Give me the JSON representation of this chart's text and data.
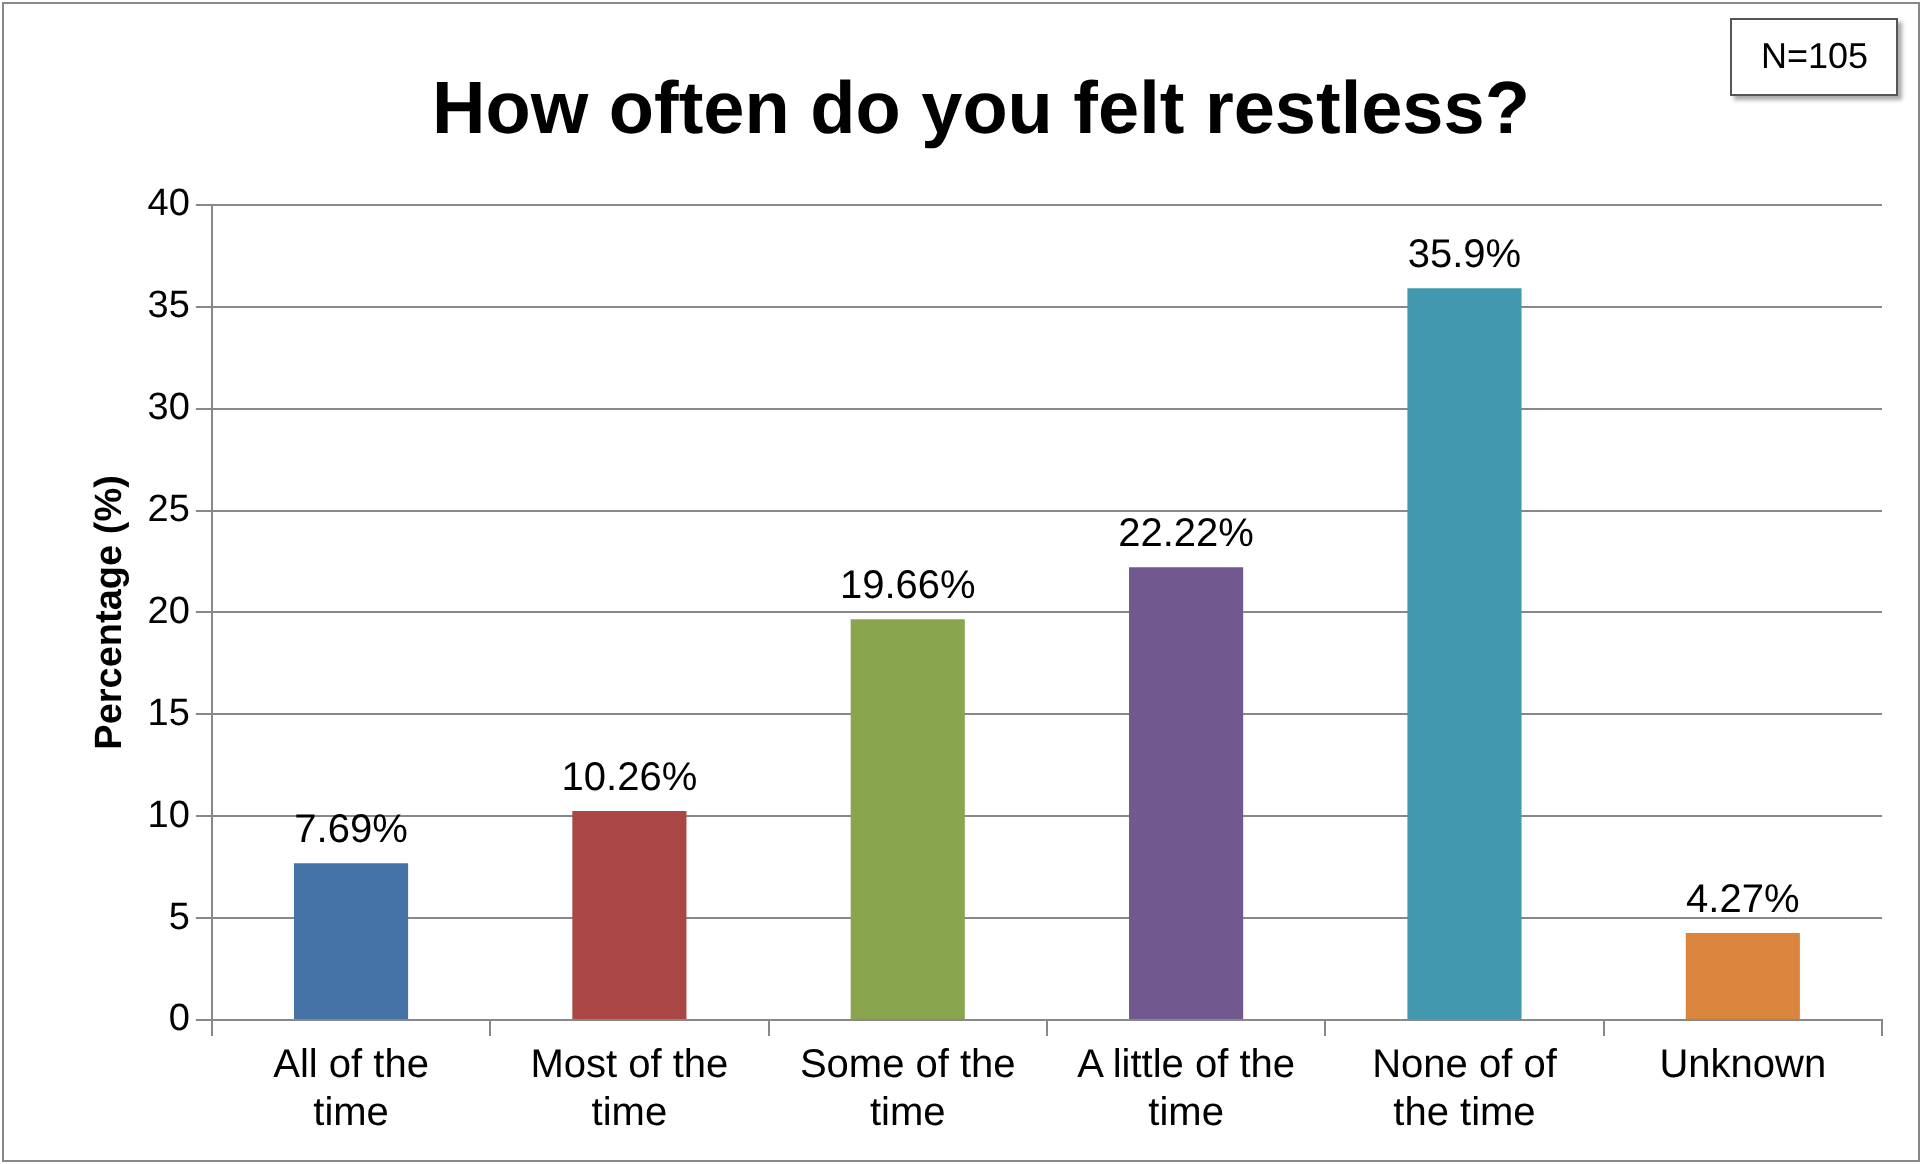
{
  "chart_data": {
    "type": "bar",
    "title": "How often do you felt restless?",
    "ylabel": "Percentage (%)",
    "categories": [
      "All of the time",
      "Most of the time",
      "Some of the time",
      "A little of the time",
      "None of of the time",
      "Unknown"
    ],
    "values": [
      7.69,
      10.26,
      19.66,
      22.22,
      35.9,
      4.27
    ],
    "colors": [
      "#4572a7",
      "#aa4643",
      "#89a54e",
      "#71588f",
      "#4198af",
      "#db843d"
    ],
    "value_labels": [
      "7.69%",
      "10.26%",
      "19.66%",
      "22.22%",
      "35.9%",
      "4.27%"
    ],
    "ylim": [
      0,
      40
    ],
    "yticks": [
      0,
      5,
      10,
      15,
      20,
      25,
      30,
      35,
      40
    ],
    "grid": "y",
    "legend": false,
    "annotations": [
      "N=105"
    ]
  }
}
